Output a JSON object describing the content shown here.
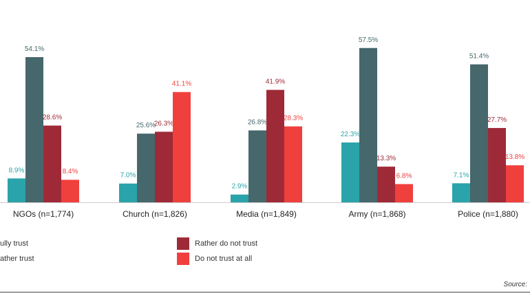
{
  "chart_data": {
    "type": "bar",
    "categories": [
      "NGOs (n=1,774)",
      "Church (n=1,826)",
      "Media (n=1,849)",
      "Army (n=1,868)",
      "Police (n=1,880)"
    ],
    "series": [
      {
        "name": "Fully trust",
        "color": "#2aa3aa",
        "values": [
          8.9,
          7.0,
          2.9,
          22.3,
          7.1
        ],
        "labels": [
          "8.9%",
          "7.0%",
          "2.9%",
          "22.3%",
          "7.1%"
        ]
      },
      {
        "name": "Rather trust",
        "color": "#46676c",
        "values": [
          54.1,
          25.6,
          26.8,
          57.5,
          51.4
        ],
        "labels": [
          "54.1%",
          "25.6%",
          "26.8%",
          "57.5%",
          "51.4%"
        ]
      },
      {
        "name": "Rather do not trust",
        "color": "#9e2a38",
        "values": [
          28.6,
          26.3,
          41.9,
          13.3,
          27.7
        ],
        "labels": [
          "28.6%",
          "26.3%",
          "41.9%",
          "13.3%",
          "27.7%"
        ]
      },
      {
        "name": "Do not trust at all",
        "color": "#f0403e",
        "values": [
          8.4,
          41.1,
          28.3,
          6.8,
          13.8
        ],
        "labels": [
          "8.4%",
          "41.1%",
          "28.3%",
          "6.8%",
          "13.8%"
        ]
      }
    ],
    "legend_visible_text": [
      "ully trust",
      "ather trust",
      "Rather do not trust",
      "Do not trust at all"
    ],
    "ylim": [
      0,
      60
    ],
    "grid": false,
    "legend_position": "bottom",
    "source_label": "Source:"
  }
}
